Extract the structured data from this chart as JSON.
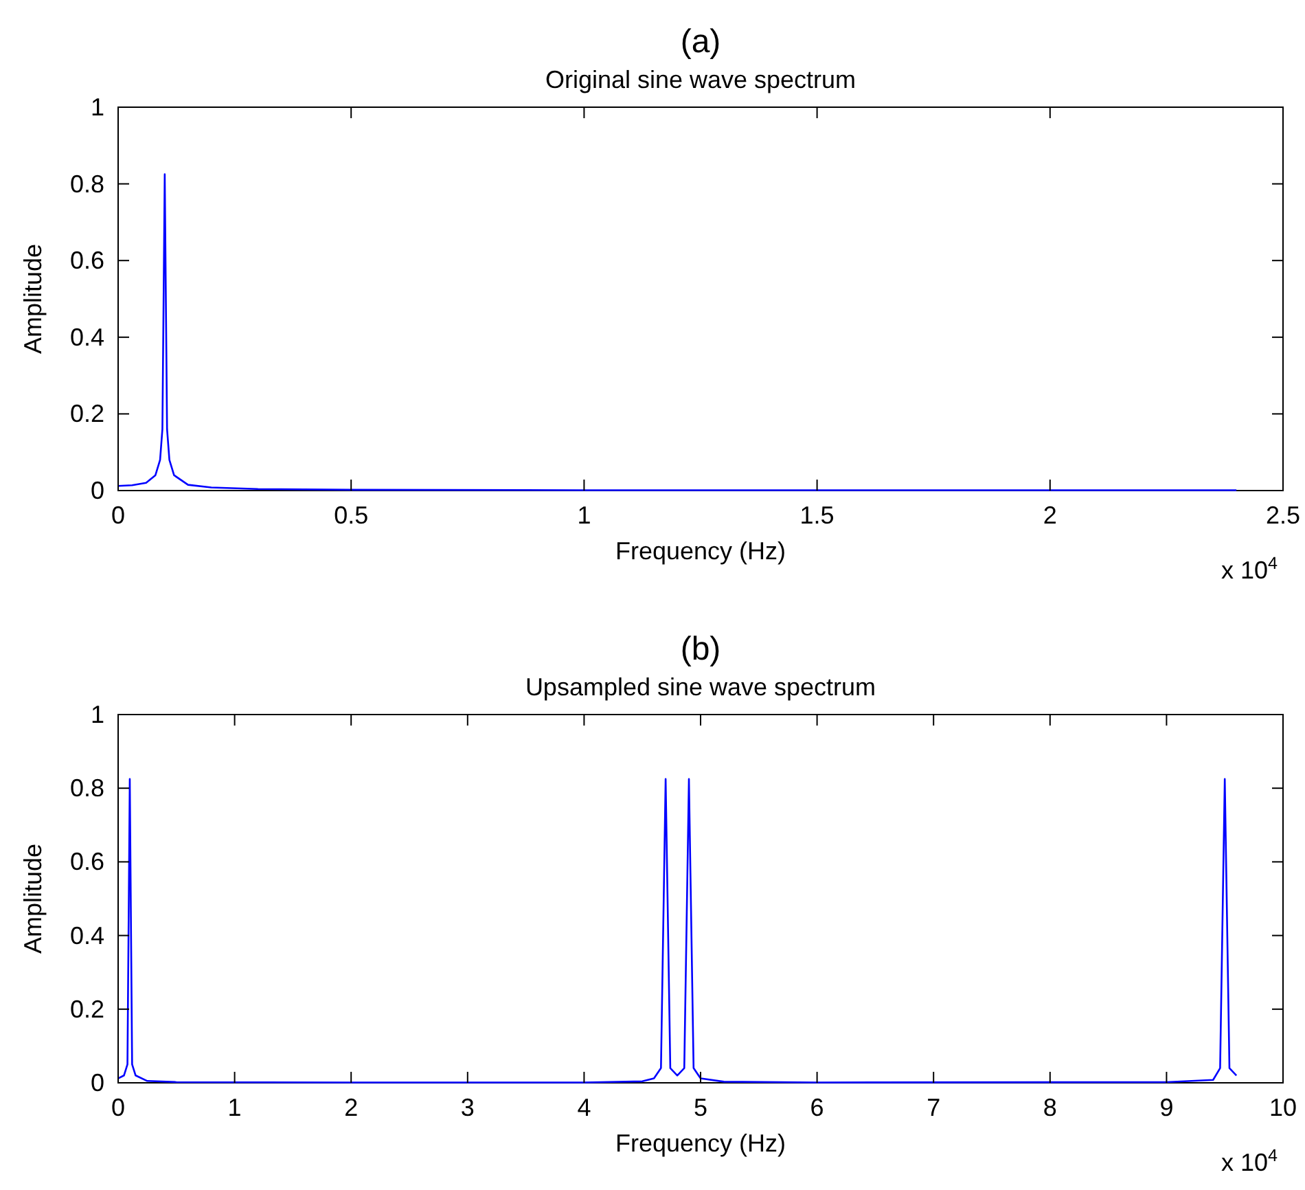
{
  "chart_data": [
    {
      "type": "line",
      "title": "(a)",
      "subtitle": "Original sine wave spectrum",
      "xlabel": "Frequency (Hz)",
      "ylabel": "Amplitude",
      "annotations": [
        "x 10$^{4}$"
      ],
      "series": [
        {
          "color": "#0000ff",
          "x": [
            0,
            0.03,
            0.06,
            0.08,
            0.09,
            0.095,
            0.1,
            0.105,
            0.11,
            0.12,
            0.15,
            0.2,
            0.3,
            0.5,
            1,
            2.4
          ],
          "values": [
            0.012,
            0.014,
            0.02,
            0.04,
            0.08,
            0.16,
            0.825,
            0.16,
            0.08,
            0.04,
            0.015,
            0.008,
            0.004,
            0.002,
            0.001,
            0.001
          ]
        }
      ],
      "xlim": [
        0,
        2.5
      ],
      "xticks": [
        0,
        0.5,
        1,
        1.5,
        2,
        2.5
      ],
      "ylim": [
        0,
        1
      ],
      "yticks": [
        0,
        0.2,
        0.4,
        0.6,
        0.8,
        1
      ],
      "grid": false
    },
    {
      "type": "line",
      "title": "(b)",
      "subtitle": "Upsampled sine wave spectrum",
      "xlabel": "Frequency (Hz)",
      "ylabel": "Amplitude",
      "annotations": [
        "x 10$^{4}$"
      ],
      "series": [
        {
          "color": "#0000ff",
          "x": [
            0,
            0.05,
            0.08,
            0.1,
            0.12,
            0.15,
            0.25,
            0.5,
            2,
            4,
            4.5,
            4.6,
            4.66,
            4.7,
            4.74,
            4.8,
            4.86,
            4.9,
            4.94,
            5,
            5.2,
            6,
            9,
            9.4,
            9.46,
            9.5,
            9.54,
            9.6
          ],
          "values": [
            0.012,
            0.02,
            0.05,
            0.825,
            0.05,
            0.02,
            0.005,
            0.002,
            0.001,
            0.001,
            0.004,
            0.012,
            0.04,
            0.825,
            0.04,
            0.02,
            0.04,
            0.825,
            0.04,
            0.012,
            0.003,
            0.001,
            0.002,
            0.008,
            0.04,
            0.825,
            0.04,
            0.02
          ]
        }
      ],
      "xlim": [
        0,
        10
      ],
      "xticks": [
        0,
        1,
        2,
        3,
        4,
        5,
        6,
        7,
        8,
        9,
        10
      ],
      "ylim": [
        0,
        1
      ],
      "yticks": [
        0,
        0.2,
        0.4,
        0.6,
        0.8,
        1
      ],
      "grid": false
    }
  ]
}
